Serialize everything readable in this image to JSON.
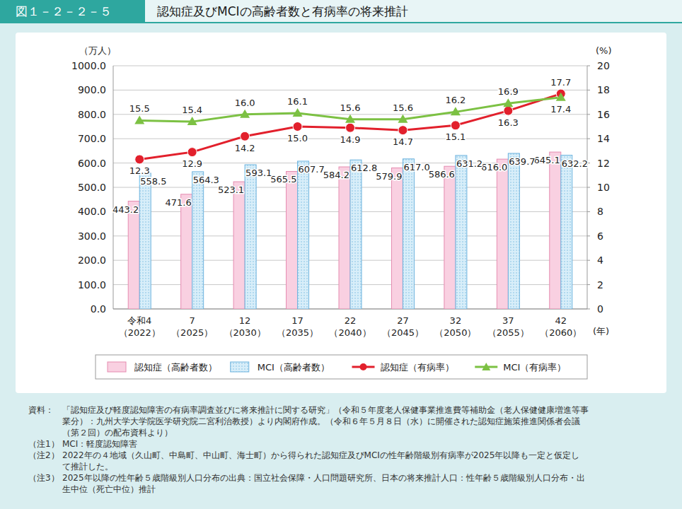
{
  "chart_data": {
    "type": "bar",
    "figure_number": "図１－２－２－５",
    "title": "認知症及びMCIの高齢者数と有病率の将来推計",
    "x_label": "(年)",
    "y_label": "（万人）",
    "y2_label": "(%)",
    "categories": [
      "令和4\n（2022）",
      "7\n（2025）",
      "12\n（2030）",
      "17\n（2035）",
      "22\n（2040）",
      "27\n（2045）",
      "32\n（2050）",
      "37\n（2055）",
      "42\n（2060）"
    ],
    "ylim": [
      0,
      1000
    ],
    "yticks": [
      {
        "value": 0,
        "label": "0.0"
      },
      {
        "value": 100,
        "label": "100.0"
      },
      {
        "value": 200,
        "label": "200.0"
      },
      {
        "value": 300,
        "label": "300.0"
      },
      {
        "value": 400,
        "label": "400.0"
      },
      {
        "value": 500,
        "label": "500.0"
      },
      {
        "value": 600,
        "label": "600.0"
      },
      {
        "value": 700,
        "label": "700.0"
      },
      {
        "value": 800,
        "label": "800.0"
      },
      {
        "value": 900,
        "label": "900.0"
      },
      {
        "value": 1000,
        "label": "1000.0"
      }
    ],
    "y2lim": [
      0,
      20
    ],
    "y2ticks": [
      0,
      2,
      4,
      6,
      8,
      10,
      12,
      14,
      16,
      18,
      20
    ],
    "grid": true,
    "legend": "bottom",
    "data_labels": true,
    "series": [
      {
        "name": "認知症（高齢者数）",
        "type": "bar",
        "color": "#f9d0e1",
        "values": [
          443.2,
          471.6,
          523.1,
          565.5,
          584.2,
          579.9,
          586.6,
          616.0,
          645.1
        ],
        "value_labels": [
          "443.2",
          "471.6",
          "523.1",
          "565.5",
          "584.2",
          "579.9",
          "586.6",
          "616.0",
          "645.1"
        ]
      },
      {
        "name": "MCI（高齢者数）",
        "type": "bar",
        "color": "#d8eef9",
        "values": [
          558.5,
          564.3,
          593.1,
          607.7,
          612.8,
          617.0,
          631.2,
          639.7,
          632.2
        ],
        "value_labels": [
          "558.5",
          "564.3",
          "593.1",
          "607.7",
          "612.8",
          "617.0",
          "631.2",
          "639.7",
          "632.2"
        ]
      },
      {
        "name": "認知症（有病率）",
        "type": "line",
        "axis": "y2",
        "color": "#e2202c",
        "marker": "circle",
        "values": [
          12.3,
          12.9,
          14.2,
          15.0,
          14.9,
          14.7,
          15.1,
          16.3,
          17.7
        ],
        "value_labels": [
          "12.3",
          "12.9",
          "14.2",
          "15.0",
          "14.9",
          "14.7",
          "15.1",
          "16.3",
          "17.7"
        ]
      },
      {
        "name": "MCI（有病率）",
        "type": "line",
        "axis": "y2",
        "color": "#7cc143",
        "marker": "triangle",
        "values": [
          15.5,
          15.4,
          16.0,
          16.1,
          15.6,
          15.6,
          16.2,
          16.9,
          17.4
        ],
        "value_labels": [
          "15.5",
          "15.4",
          "16.0",
          "16.1",
          "15.6",
          "15.6",
          "16.2",
          "16.9",
          "17.4"
        ]
      }
    ],
    "notes": [
      {
        "label": "資料：",
        "lines": [
          "「認知症及び軽度認知障害の有病率調査並びに将来推計に関する研究」（令和５年度老人保健事業推進費等補助金（老人保健健康増進等事",
          "業分）：九州大学大学院医学研究院二宮利治教授）より内閣府作成。（令和６年５月８日（水）に開催された認知症施策推進関係者会議",
          "（第２回）の配布資料より）"
        ]
      },
      {
        "label": "（注1）",
        "lines": [
          "MCI：軽度認知障害"
        ]
      },
      {
        "label": "（注2）",
        "lines": [
          "2022年の４地域（久山町、中島町、中山町、海士町）から得られた認知症及びMCIの性年齢階級別有病率が2025年以降も一定と仮定し",
          "て推計した。"
        ]
      },
      {
        "label": "（注3）",
        "lines": [
          "2025年以降の性年齢５歳階級別人口分布の出典：国立社会保障・人口問題研究所、日本の将来推計人口：性年齢５歳階級別人口分布・出",
          "生中位（死亡中位）推計"
        ]
      }
    ]
  }
}
